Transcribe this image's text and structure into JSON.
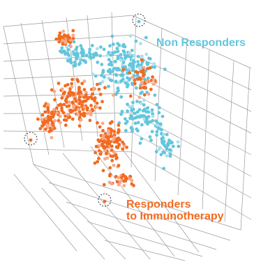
{
  "chart_data": {
    "type": "scatter",
    "projection": "3d",
    "title": "",
    "xlabel": "",
    "ylabel": "",
    "zlabel": "",
    "grid": true,
    "series": [
      {
        "name": "Non Responders",
        "label_lines": [
          "Non Responders"
        ],
        "color": "#62c6dc",
        "light_color": "#a9e0ec",
        "region": "upper-right"
      },
      {
        "name": "Responders to Immunotherapy",
        "label_lines": [
          "Responders",
          "to Immunotherapy"
        ],
        "color": "#f26b21",
        "light_color": "#f7a98a",
        "region": "left-and-lower"
      }
    ],
    "highlighted_points": 3
  }
}
